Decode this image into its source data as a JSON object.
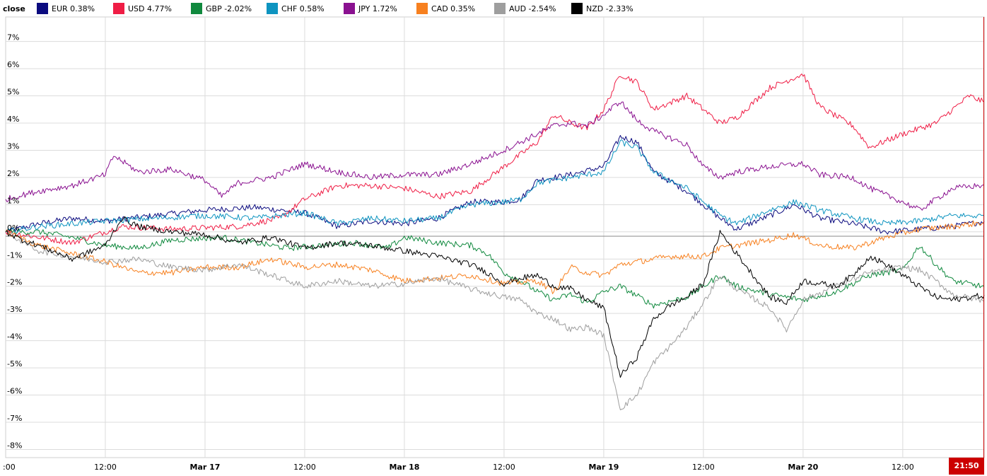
{
  "chart_data": {
    "type": "line",
    "legend_title": "close",
    "legend_position": "top-left",
    "grid": true,
    "ylim": [
      -8.3,
      7.9
    ],
    "y_ticks": [
      7,
      6,
      5,
      4,
      3,
      2,
      1,
      0,
      -1,
      -2,
      -3,
      -4,
      -5,
      -6,
      -7,
      -8
    ],
    "y_tick_labels": [
      "7%",
      "6%",
      "5%",
      "4%",
      "3%",
      "2%",
      "1%",
      "0%",
      "-1%",
      "-2%",
      "-3%",
      "-4%",
      "-5%",
      "-6%",
      "-7%",
      "-8%"
    ],
    "x_range_hours": [
      0,
      117.8
    ],
    "x_ticks": [
      {
        "x": 0,
        "label": ":00",
        "bold": false
      },
      {
        "x": 12,
        "label": "12:00",
        "bold": false
      },
      {
        "x": 24,
        "label": "Mar 17",
        "bold": true
      },
      {
        "x": 36,
        "label": "12:00",
        "bold": false
      },
      {
        "x": 48,
        "label": "Mar 18",
        "bold": true
      },
      {
        "x": 60,
        "label": "12:00",
        "bold": false
      },
      {
        "x": 72,
        "label": "Mar 19",
        "bold": true
      },
      {
        "x": 84,
        "label": "12:00",
        "bold": false
      },
      {
        "x": 96,
        "label": "Mar 20",
        "bold": true
      },
      {
        "x": 108,
        "label": "12:00",
        "bold": false
      }
    ],
    "current_time_label": "21:50",
    "series": [
      {
        "name": "EUR",
        "value_label": "0.38%",
        "color": "#0b0b7f",
        "points": [
          [
            0,
            0
          ],
          [
            4,
            0.3
          ],
          [
            8,
            0.5
          ],
          [
            12,
            0.4
          ],
          [
            18,
            0.6
          ],
          [
            24,
            0.8
          ],
          [
            30,
            0.9
          ],
          [
            36,
            0.7
          ],
          [
            40,
            0.2
          ],
          [
            44,
            0.4
          ],
          [
            48,
            0.3
          ],
          [
            52,
            0.5
          ],
          [
            56,
            1.1
          ],
          [
            60,
            1.1
          ],
          [
            62,
            1.2
          ],
          [
            64,
            1.9
          ],
          [
            68,
            2.1
          ],
          [
            72,
            2.4
          ],
          [
            74,
            3.5
          ],
          [
            76,
            3.3
          ],
          [
            78,
            2.2
          ],
          [
            82,
            1.5
          ],
          [
            86,
            0.5
          ],
          [
            88,
            0.1
          ],
          [
            92,
            0.6
          ],
          [
            95,
            1.0
          ],
          [
            98,
            0.5
          ],
          [
            102,
            0.3
          ],
          [
            106,
            0.0
          ],
          [
            110,
            0.1
          ],
          [
            114,
            0.2
          ],
          [
            117.8,
            0.38
          ]
        ]
      },
      {
        "name": "USD",
        "value_label": "4.77%",
        "color": "#ef1d45",
        "points": [
          [
            0,
            0
          ],
          [
            4,
            -0.2
          ],
          [
            8,
            -0.4
          ],
          [
            14,
            0.2
          ],
          [
            20,
            0.1
          ],
          [
            28,
            0.2
          ],
          [
            33,
            0.5
          ],
          [
            36,
            1.2
          ],
          [
            40,
            1.7
          ],
          [
            44,
            1.7
          ],
          [
            48,
            1.6
          ],
          [
            52,
            1.3
          ],
          [
            56,
            1.5
          ],
          [
            60,
            2.4
          ],
          [
            64,
            3.3
          ],
          [
            66,
            4.3
          ],
          [
            68,
            4.0
          ],
          [
            70,
            3.8
          ],
          [
            72,
            4.5
          ],
          [
            74,
            5.8
          ],
          [
            76,
            5.5
          ],
          [
            78,
            4.5
          ],
          [
            82,
            5.0
          ],
          [
            86,
            4.0
          ],
          [
            88,
            4.2
          ],
          [
            92,
            5.3
          ],
          [
            96,
            5.8
          ],
          [
            98,
            4.6
          ],
          [
            102,
            3.9
          ],
          [
            104,
            3.1
          ],
          [
            108,
            3.6
          ],
          [
            112,
            4.0
          ],
          [
            116,
            5.0
          ],
          [
            117.8,
            4.77
          ]
        ]
      },
      {
        "name": "GBP",
        "value_label": "-2.02%",
        "color": "#10893e",
        "points": [
          [
            0,
            0
          ],
          [
            4,
            0.0
          ],
          [
            8,
            -0.2
          ],
          [
            12,
            -0.5
          ],
          [
            16,
            -0.6
          ],
          [
            20,
            -0.3
          ],
          [
            26,
            -0.2
          ],
          [
            30,
            -0.4
          ],
          [
            34,
            -0.6
          ],
          [
            38,
            -0.5
          ],
          [
            42,
            -0.4
          ],
          [
            46,
            -0.6
          ],
          [
            48,
            -0.2
          ],
          [
            52,
            -0.4
          ],
          [
            56,
            -0.5
          ],
          [
            58,
            -0.8
          ],
          [
            60,
            -1.5
          ],
          [
            62,
            -1.8
          ],
          [
            64,
            -2.2
          ],
          [
            66,
            -2.5
          ],
          [
            68,
            -2.3
          ],
          [
            70,
            -2.6
          ],
          [
            72,
            -2.2
          ],
          [
            74,
            -2.0
          ],
          [
            78,
            -2.7
          ],
          [
            82,
            -2.4
          ],
          [
            86,
            -1.6
          ],
          [
            88,
            -2.0
          ],
          [
            92,
            -2.3
          ],
          [
            96,
            -2.5
          ],
          [
            100,
            -2.2
          ],
          [
            104,
            -1.6
          ],
          [
            108,
            -1.4
          ],
          [
            110,
            -0.5
          ],
          [
            112,
            -1.2
          ],
          [
            114,
            -1.8
          ],
          [
            117.8,
            -2.02
          ]
        ]
      },
      {
        "name": "CHF",
        "value_label": "0.58%",
        "color": "#0e94c0",
        "points": [
          [
            0,
            0
          ],
          [
            4,
            0.2
          ],
          [
            8,
            0.3
          ],
          [
            12,
            0.4
          ],
          [
            18,
            0.5
          ],
          [
            24,
            0.6
          ],
          [
            30,
            0.5
          ],
          [
            36,
            0.7
          ],
          [
            40,
            0.3
          ],
          [
            44,
            0.5
          ],
          [
            48,
            0.4
          ],
          [
            52,
            0.5
          ],
          [
            56,
            1.0
          ],
          [
            60,
            1.1
          ],
          [
            62,
            1.2
          ],
          [
            64,
            1.8
          ],
          [
            68,
            2.0
          ],
          [
            72,
            2.2
          ],
          [
            74,
            3.3
          ],
          [
            76,
            3.1
          ],
          [
            78,
            2.2
          ],
          [
            82,
            1.6
          ],
          [
            86,
            0.6
          ],
          [
            88,
            0.3
          ],
          [
            92,
            0.8
          ],
          [
            95,
            1.1
          ],
          [
            98,
            0.8
          ],
          [
            102,
            0.5
          ],
          [
            106,
            0.3
          ],
          [
            110,
            0.4
          ],
          [
            114,
            0.6
          ],
          [
            117.8,
            0.58
          ]
        ]
      },
      {
        "name": "JPY",
        "value_label": "1.72%",
        "color": "#8a1190",
        "points": [
          [
            0,
            1.2
          ],
          [
            4,
            1.5
          ],
          [
            8,
            1.7
          ],
          [
            12,
            2.1
          ],
          [
            13,
            2.8
          ],
          [
            16,
            2.2
          ],
          [
            20,
            2.3
          ],
          [
            24,
            1.9
          ],
          [
            26,
            1.3
          ],
          [
            28,
            1.8
          ],
          [
            32,
            2.0
          ],
          [
            36,
            2.5
          ],
          [
            40,
            2.2
          ],
          [
            44,
            2.0
          ],
          [
            48,
            2.1
          ],
          [
            52,
            2.1
          ],
          [
            56,
            2.5
          ],
          [
            60,
            3.0
          ],
          [
            64,
            3.6
          ],
          [
            66,
            3.9
          ],
          [
            68,
            4.0
          ],
          [
            70,
            3.9
          ],
          [
            72,
            4.3
          ],
          [
            74,
            4.8
          ],
          [
            76,
            4.1
          ],
          [
            78,
            3.7
          ],
          [
            82,
            3.2
          ],
          [
            84,
            2.4
          ],
          [
            86,
            2.0
          ],
          [
            88,
            2.2
          ],
          [
            92,
            2.4
          ],
          [
            96,
            2.5
          ],
          [
            98,
            2.1
          ],
          [
            102,
            2.0
          ],
          [
            104,
            1.6
          ],
          [
            108,
            1.1
          ],
          [
            110,
            0.8
          ],
          [
            112,
            1.2
          ],
          [
            114,
            1.6
          ],
          [
            117.8,
            1.72
          ]
        ]
      },
      {
        "name": "CAD",
        "value_label": "0.35%",
        "color": "#f7801f",
        "points": [
          [
            0,
            0
          ],
          [
            4,
            -0.5
          ],
          [
            8,
            -0.8
          ],
          [
            12,
            -1.1
          ],
          [
            16,
            -1.5
          ],
          [
            20,
            -1.5
          ],
          [
            24,
            -1.3
          ],
          [
            28,
            -1.3
          ],
          [
            32,
            -1.0
          ],
          [
            36,
            -1.3
          ],
          [
            40,
            -1.2
          ],
          [
            44,
            -1.4
          ],
          [
            48,
            -1.8
          ],
          [
            52,
            -1.7
          ],
          [
            56,
            -1.6
          ],
          [
            60,
            -1.9
          ],
          [
            64,
            -1.8
          ],
          [
            66,
            -2.2
          ],
          [
            68,
            -1.3
          ],
          [
            70,
            -1.5
          ],
          [
            72,
            -1.6
          ],
          [
            74,
            -1.2
          ],
          [
            76,
            -1.1
          ],
          [
            80,
            -0.9
          ],
          [
            84,
            -0.9
          ],
          [
            86,
            -0.6
          ],
          [
            88,
            -0.5
          ],
          [
            92,
            -0.3
          ],
          [
            95,
            -0.1
          ],
          [
            98,
            -0.5
          ],
          [
            102,
            -0.6
          ],
          [
            106,
            -0.2
          ],
          [
            110,
            0.1
          ],
          [
            114,
            0.2
          ],
          [
            117.8,
            0.35
          ]
        ]
      },
      {
        "name": "AUD",
        "value_label": "-2.54%",
        "color": "#9e9e9e",
        "points": [
          [
            0,
            0
          ],
          [
            4,
            -0.7
          ],
          [
            8,
            -0.9
          ],
          [
            12,
            -1.1
          ],
          [
            16,
            -1.0
          ],
          [
            20,
            -1.3
          ],
          [
            24,
            -1.4
          ],
          [
            28,
            -1.2
          ],
          [
            32,
            -1.6
          ],
          [
            36,
            -2.0
          ],
          [
            40,
            -1.8
          ],
          [
            44,
            -2.0
          ],
          [
            48,
            -1.9
          ],
          [
            52,
            -1.7
          ],
          [
            56,
            -2.1
          ],
          [
            60,
            -2.4
          ],
          [
            62,
            -2.5
          ],
          [
            64,
            -3.0
          ],
          [
            66,
            -3.2
          ],
          [
            68,
            -3.6
          ],
          [
            70,
            -3.5
          ],
          [
            72,
            -3.8
          ],
          [
            74,
            -6.5
          ],
          [
            76,
            -6.0
          ],
          [
            78,
            -4.8
          ],
          [
            80,
            -4.2
          ],
          [
            82,
            -3.5
          ],
          [
            84,
            -2.6
          ],
          [
            86,
            -1.6
          ],
          [
            88,
            -2.1
          ],
          [
            92,
            -2.8
          ],
          [
            94,
            -3.6
          ],
          [
            96,
            -2.5
          ],
          [
            100,
            -2.0
          ],
          [
            104,
            -1.5
          ],
          [
            108,
            -1.3
          ],
          [
            110,
            -1.4
          ],
          [
            112,
            -1.8
          ],
          [
            114,
            -2.3
          ],
          [
            117.8,
            -2.54
          ]
        ]
      },
      {
        "name": "NZD",
        "value_label": "-2.33%",
        "color": "#000000",
        "points": [
          [
            0,
            0
          ],
          [
            2,
            -0.3
          ],
          [
            4,
            -0.5
          ],
          [
            8,
            -1.0
          ],
          [
            12,
            -0.5
          ],
          [
            14,
            0.5
          ],
          [
            16,
            0.2
          ],
          [
            20,
            0.0
          ],
          [
            24,
            -0.1
          ],
          [
            28,
            -0.4
          ],
          [
            32,
            -0.2
          ],
          [
            36,
            -0.6
          ],
          [
            40,
            -0.4
          ],
          [
            44,
            -0.5
          ],
          [
            48,
            -0.7
          ],
          [
            52,
            -0.9
          ],
          [
            56,
            -1.2
          ],
          [
            58,
            -1.5
          ],
          [
            60,
            -1.9
          ],
          [
            62,
            -1.7
          ],
          [
            64,
            -1.6
          ],
          [
            66,
            -2.0
          ],
          [
            68,
            -2.1
          ],
          [
            70,
            -2.5
          ],
          [
            72,
            -2.8
          ],
          [
            74,
            -5.3
          ],
          [
            76,
            -4.6
          ],
          [
            78,
            -3.2
          ],
          [
            80,
            -2.7
          ],
          [
            82,
            -2.4
          ],
          [
            84,
            -1.9
          ],
          [
            86,
            0.0
          ],
          [
            88,
            -0.8
          ],
          [
            90,
            -1.6
          ],
          [
            92,
            -2.4
          ],
          [
            94,
            -2.6
          ],
          [
            96,
            -1.8
          ],
          [
            100,
            -2.0
          ],
          [
            102,
            -1.6
          ],
          [
            104,
            -0.9
          ],
          [
            106,
            -1.2
          ],
          [
            108,
            -1.6
          ],
          [
            110,
            -2.0
          ],
          [
            112,
            -2.4
          ],
          [
            114,
            -2.5
          ],
          [
            117.8,
            -2.33
          ]
        ]
      }
    ]
  }
}
